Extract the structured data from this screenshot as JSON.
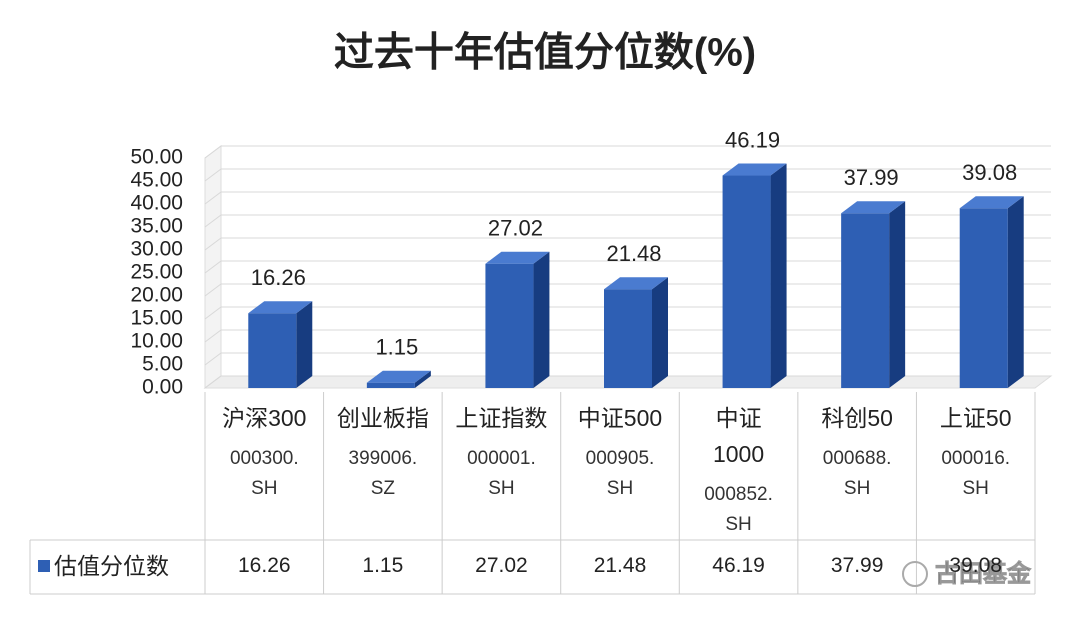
{
  "chart_data": {
    "type": "bar3d",
    "title": "过去十年估值分位数(%)",
    "categories": [
      "沪深300",
      "创业板指",
      "上证指数",
      "中证500",
      "中证1000",
      "科创50",
      "上证50"
    ],
    "codes": [
      "000300.SH",
      "399006.SZ",
      "000001.SH",
      "000905.SH",
      "000852.SH",
      "000688.SH",
      "000016.SH"
    ],
    "series": [
      {
        "name": "估值分位数",
        "color": "#2e5fb4",
        "values": [
          16.26,
          1.15,
          27.02,
          21.48,
          46.19,
          37.99,
          39.08
        ]
      }
    ],
    "ylim": [
      0,
      50
    ],
    "yticks": [
      {
        "value": 0,
        "label": "0.00"
      },
      {
        "value": 5,
        "label": "5.00"
      },
      {
        "value": 10,
        "label": "10.00"
      },
      {
        "value": 15,
        "label": "15.00"
      },
      {
        "value": 20,
        "label": "20.00"
      },
      {
        "value": 25,
        "label": "25.00"
      },
      {
        "value": 30,
        "label": "30.00"
      },
      {
        "value": 35,
        "label": "35.00"
      },
      {
        "value": 40,
        "label": "40.00"
      },
      {
        "value": 45,
        "label": "45.00"
      },
      {
        "value": 50,
        "label": "50.00"
      }
    ],
    "grid": true,
    "watermark": "古田基金"
  }
}
